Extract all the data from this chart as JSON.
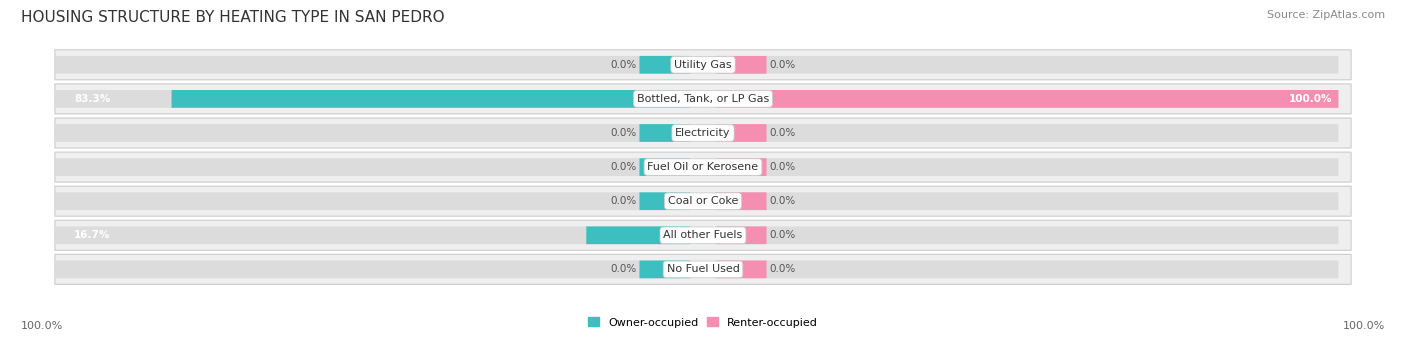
{
  "title": "HOUSING STRUCTURE BY HEATING TYPE IN SAN PEDRO",
  "source": "Source: ZipAtlas.com",
  "categories": [
    "Utility Gas",
    "Bottled, Tank, or LP Gas",
    "Electricity",
    "Fuel Oil or Kerosene",
    "Coal or Coke",
    "All other Fuels",
    "No Fuel Used"
  ],
  "owner_values": [
    0.0,
    83.3,
    0.0,
    0.0,
    0.0,
    16.7,
    0.0
  ],
  "renter_values": [
    0.0,
    100.0,
    0.0,
    0.0,
    0.0,
    0.0,
    0.0
  ],
  "owner_color": "#3dbfbf",
  "renter_color": "#f48fb1",
  "bar_bg_color": "#dcdcdc",
  "row_bg_color": "#efefef",
  "row_bg_edge": "#d0d0d0",
  "axis_label_left": "100.0%",
  "axis_label_right": "100.0%",
  "title_fontsize": 11,
  "source_fontsize": 8,
  "label_fontsize": 8,
  "category_fontsize": 8,
  "value_fontsize": 7.5,
  "min_stub": 8.0,
  "max_val": 100.0
}
